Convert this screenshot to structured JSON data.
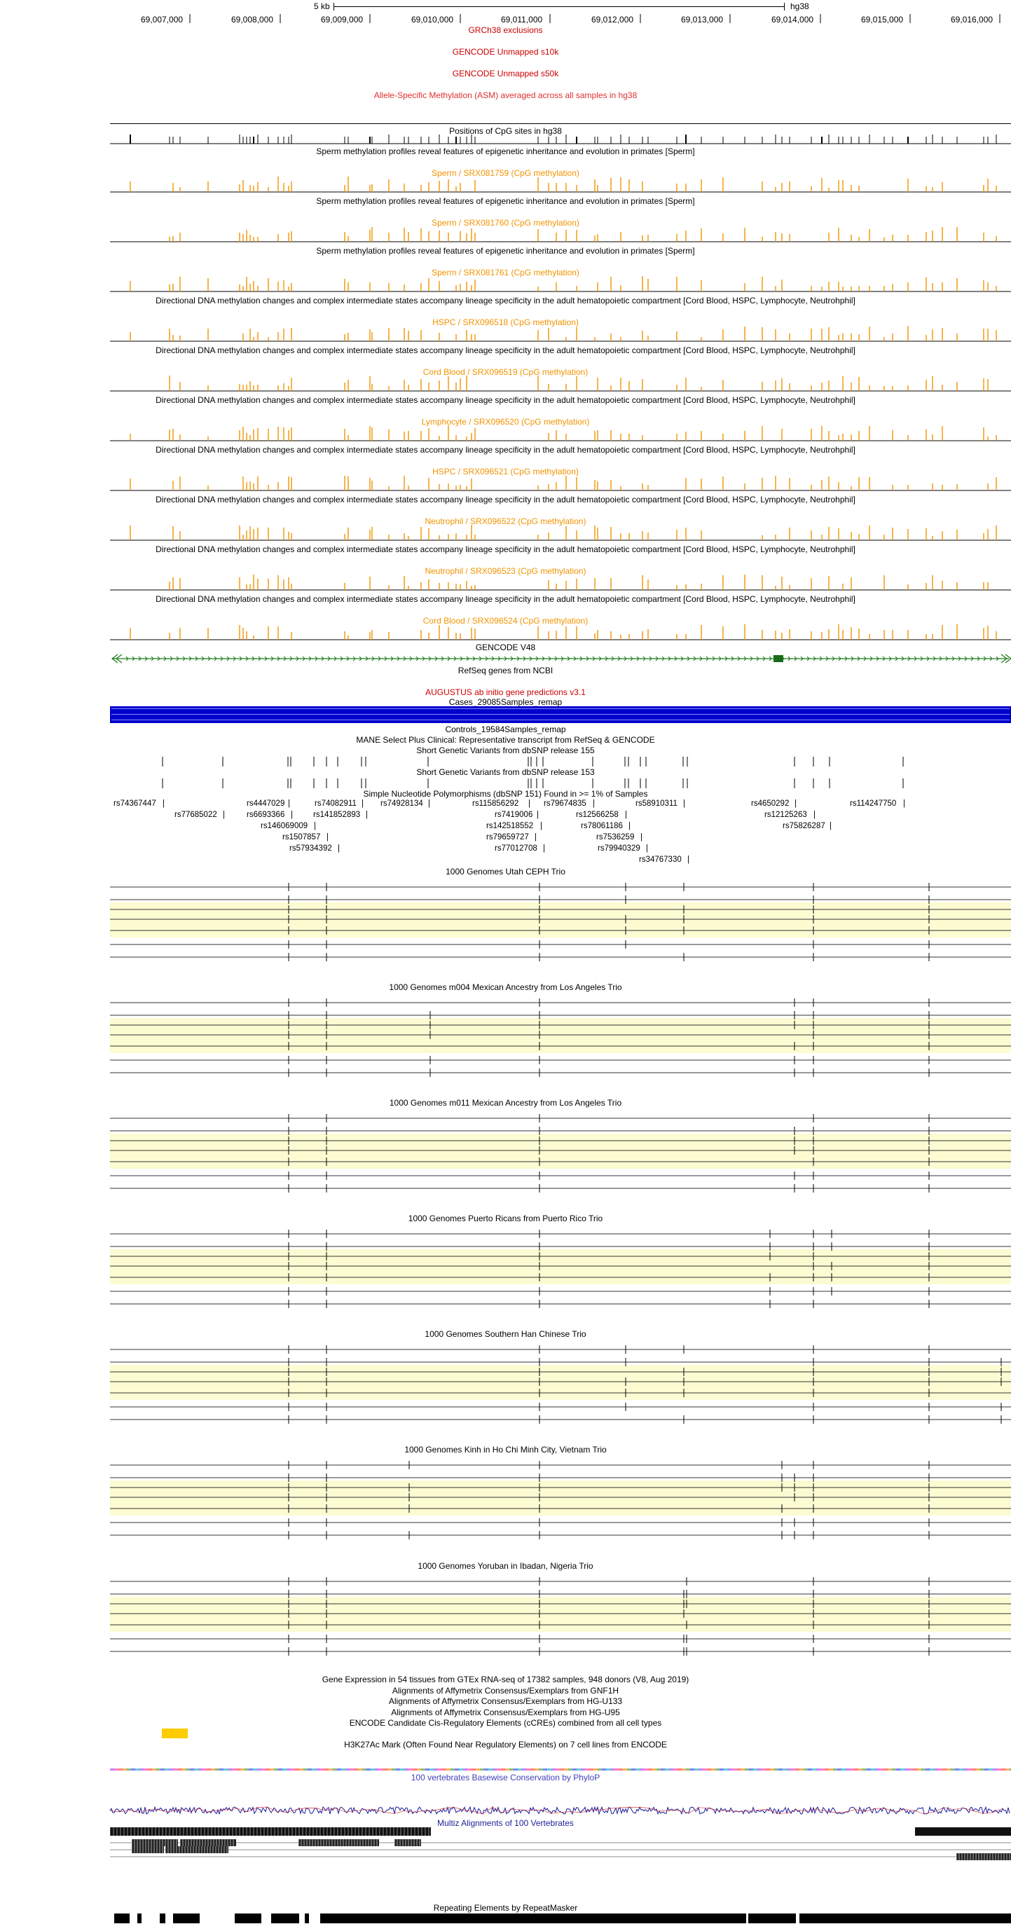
{
  "ruler": {
    "scale_label": "5 kb",
    "assembly": "hg38",
    "positions": [
      "69,007,000",
      "69,008,000",
      "69,009,000",
      "69,010,000",
      "69,011,000",
      "69,012,000",
      "69,013,000",
      "69,014,000",
      "69,015,000",
      "69,016,000"
    ]
  },
  "tracks": {
    "grch38_exclusions": "GRCh38 exclusions",
    "gencode_unmapped_s10k": "GENCODE Unmapped s10k",
    "gencode_unmapped_s50k": "GENCODE Unmapped s50k",
    "asm": "Allele-Specific Methylation (ASM) averaged across all samples in hg38",
    "cpg_sites": "Positions of CpG sites in hg38",
    "methylation": [
      {
        "group": "Sperm methylation profiles reveal features of epigenetic inheritance and evolution in primates [Sperm]",
        "sample": "Sperm / SRX081759 (CpG methylation)"
      },
      {
        "group": "Sperm methylation profiles reveal features of epigenetic inheritance and evolution in primates [Sperm]",
        "sample": "Sperm / SRX081760 (CpG methylation)"
      },
      {
        "group": "Sperm methylation profiles reveal features of epigenetic inheritance and evolution in primates [Sperm]",
        "sample": "Sperm / SRX081761 (CpG methylation)"
      },
      {
        "group": "Directional DNA methylation changes and complex intermediate states accompany lineage specificity in the adult hematopoietic compartment [Cord Blood, HSPC, Lymphocyte, Neutrohphil]",
        "sample": "HSPC / SRX096518 (CpG methylation)"
      },
      {
        "group": "Directional DNA methylation changes and complex intermediate states accompany lineage specificity in the adult hematopoietic compartment [Cord Blood, HSPC, Lymphocyte, Neutrohphil]",
        "sample": "Cord Blood / SRX096519 (CpG methylation)"
      },
      {
        "group": "Directional DNA methylation changes and complex intermediate states accompany lineage specificity in the adult hematopoietic compartment [Cord Blood, HSPC, Lymphocyte, Neutrohphil]",
        "sample": "Lymphocyte / SRX096520 (CpG methylation)"
      },
      {
        "group": "Directional DNA methylation changes and complex intermediate states accompany lineage specificity in the adult hematopoietic compartment [Cord Blood, HSPC, Lymphocyte, Neutrohphil]",
        "sample": "HSPC / SRX096521 (CpG methylation)"
      },
      {
        "group": "Directional DNA methylation changes and complex intermediate states accompany lineage specificity in the adult hematopoietic compartment [Cord Blood, HSPC, Lymphocyte, Neutrohphil]",
        "sample": "Neutrophil / SRX096522 (CpG methylation)"
      },
      {
        "group": "Directional DNA methylation changes and complex intermediate states accompany lineage specificity in the adult hematopoietic compartment [Cord Blood, HSPC, Lymphocyte, Neutrohphil]",
        "sample": "Neutrophil / SRX096523 (CpG methylation)"
      },
      {
        "group": "Directional DNA methylation changes and complex intermediate states accompany lineage specificity in the adult hematopoietic compartment [Cord Blood, HSPC, Lymphocyte, Neutrohphil]",
        "sample": "Cord Blood / SRX096524 (CpG methylation)"
      }
    ],
    "gencode": "GENCODE V48",
    "refseq": "RefSeq genes from NCBI",
    "augustus": "AUGUSTUS ab initio gene predictions v3.1",
    "cases": "Cases_29085Samples_remap",
    "controls": "Controls_19584Samples_remap",
    "mane": "MANE Select Plus Clinical: Representative transcript from RefSeq & GENCODE",
    "dbsnp155": "Short Genetic Variants from dbSNP release 155",
    "dbsnp153": "Short Genetic Variants from dbSNP release 153",
    "common_snps": "Simple Nucleotide Polymorphisms (dbSNP 151) Found in >= 1% of Samples",
    "trios": [
      "1000 Genomes Utah CEPH Trio",
      "1000 Genomes m004 Mexican Ancestry from Los Angeles Trio",
      "1000 Genomes m011 Mexican Ancestry from Los Angeles Trio",
      "1000 Genomes Puerto Ricans from Puerto Rico Trio",
      "1000 Genomes Southern Han Chinese Trio",
      "1000 Genomes Kinh in Ho Chi Minh City, Vietnam Trio",
      "1000 Genomes Yoruban in Ibadan, Nigeria Trio"
    ],
    "gtex": "Gene Expression in 54 tissues from GTEx RNA-seq of 17382 samples, 948 donors (V8, Aug 2019)",
    "gnf1h": "Alignments of Affymetrix Consensus/Exemplars from GNF1H",
    "hgu133": "Alignments of Affymetrix Consensus/Exemplars from HG-U133",
    "hgu95": "Alignments of Affymetrix Consensus/Exemplars from HG-U95",
    "ccres": "ENCODE Candidate Cis-Regulatory Elements (cCREs) combined from all cell types",
    "h3k27ac": "H3K27Ac Mark (Often Found Near Regulatory Elements) on 7 cell lines from ENCODE",
    "phylop": "100 vertebrates Basewise Conservation by PhyloP",
    "multiz": "Multiz Alignments of 100 Vertebrates",
    "repeatmasker": "Repeating Elements by RepeatMasker"
  },
  "snps": {
    "row1": [
      "rs74367447",
      "rs4447029",
      "rs74082911",
      "rs74928134",
      "rs115856292",
      "rs79674835",
      "rs58910311",
      "rs4650292",
      "rs114247750"
    ],
    "row2": [
      "rs77685022",
      "rs6693366",
      "rs141852893",
      "rs7419006",
      "rs12566258",
      "rs12125263"
    ],
    "row3": [
      "rs146069009",
      "rs142518552",
      "rs78061186",
      "rs75826287"
    ],
    "row4": [
      "rs1507857",
      "rs79659727",
      "rs7536259"
    ],
    "row5": [
      "rs57934392",
      "rs77012708",
      "rs79940329"
    ],
    "row6": [
      "rs34767330"
    ]
  },
  "colors": {
    "methylation": "#f29300",
    "exclusion_red": "#cc0000",
    "gene_green": "#1a7a1a",
    "cases_blue": "#0000cc",
    "trio_band": "#fcfbd2",
    "ccre_yellow": "#ffcc00",
    "phylop_blue": "#1a1a99"
  }
}
